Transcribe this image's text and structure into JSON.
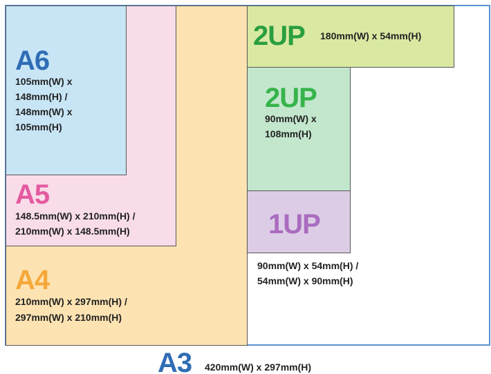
{
  "sizes": [
    {
      "label": "A6",
      "lines": [
        "105mm(W) x",
        "148mm(H) /",
        "148mm(W) x",
        "105mm(H)"
      ]
    },
    {
      "label": "A5",
      "lines": [
        "148.5mm(W) x 210mm(H) /",
        "210mm(W) x 148.5mm(H)"
      ]
    },
    {
      "label": "A4",
      "lines": [
        "210mm(W) x 297mm(H) /",
        "297mm(W) x 210mm(H)"
      ]
    },
    {
      "label": "2UP",
      "lines": [
        "180mm(W) x 54mm(H)"
      ]
    },
    {
      "label": "2UP",
      "lines": [
        "90mm(W) x",
        "108mm(H)"
      ]
    },
    {
      "label": "1UP",
      "lines": [
        "90mm(W) x 54mm(H) /",
        "54mm(W) x 90mm(H)"
      ]
    },
    {
      "label": "A3",
      "lines": [
        "420mm(W) x 297mm(H)"
      ]
    }
  ]
}
